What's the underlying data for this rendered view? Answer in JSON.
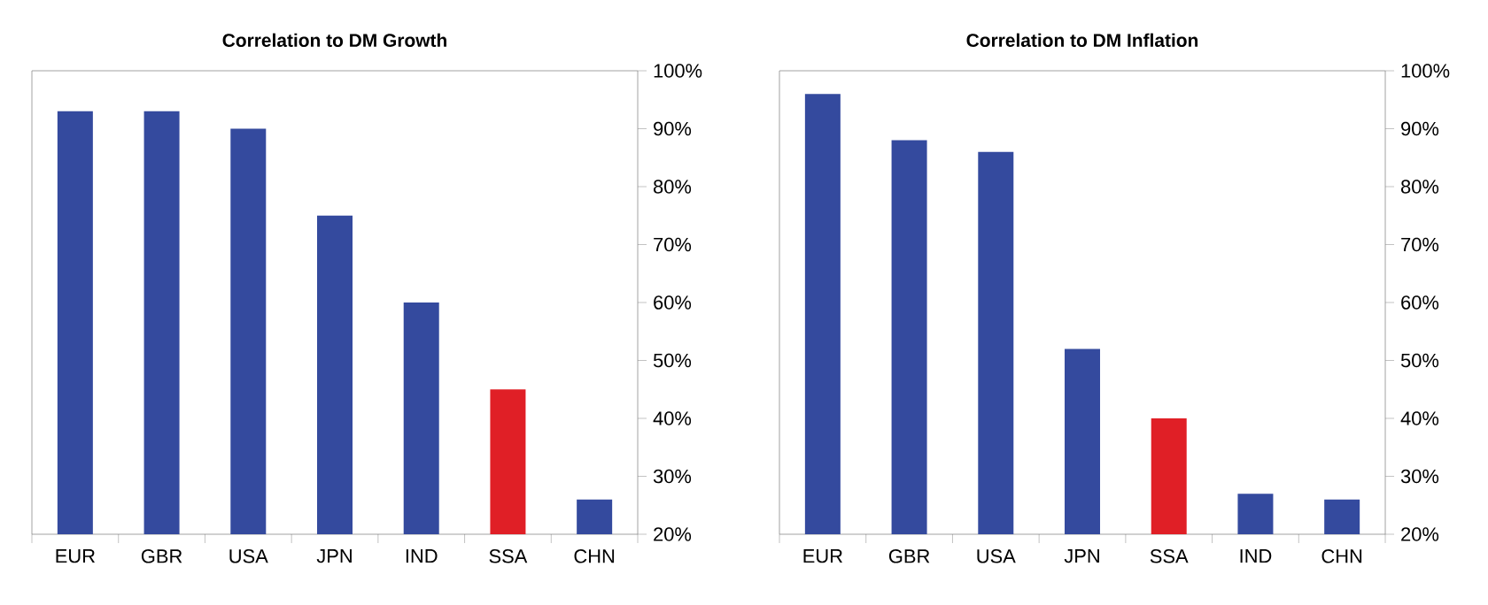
{
  "chart_data": [
    {
      "type": "bar",
      "title": "Correlation to DM Growth",
      "categories": [
        "EUR",
        "GBR",
        "USA",
        "JPN",
        "IND",
        "SSA",
        "CHN"
      ],
      "values": [
        93,
        93,
        90,
        75,
        60,
        45,
        26
      ],
      "colors": [
        "#344a9e",
        "#344a9e",
        "#344a9e",
        "#344a9e",
        "#344a9e",
        "#e01f26",
        "#344a9e"
      ],
      "ylim": [
        20,
        100
      ],
      "yticks": [
        {
          "value": 20,
          "label": "20%"
        },
        {
          "value": 30,
          "label": "30%"
        },
        {
          "value": 40,
          "label": "40%"
        },
        {
          "value": 50,
          "label": "50%"
        },
        {
          "value": 60,
          "label": "60%"
        },
        {
          "value": 70,
          "label": "70%"
        },
        {
          "value": 80,
          "label": "80%"
        },
        {
          "value": 90,
          "label": "90%"
        },
        {
          "value": 100,
          "label": "100%"
        }
      ]
    },
    {
      "type": "bar",
      "title": "Correlation to DM Inflation",
      "categories": [
        "EUR",
        "GBR",
        "USA",
        "JPN",
        "SSA",
        "IND",
        "CHN"
      ],
      "values": [
        96,
        88,
        86,
        52,
        40,
        27,
        26
      ],
      "colors": [
        "#344a9e",
        "#344a9e",
        "#344a9e",
        "#344a9e",
        "#e01f26",
        "#344a9e",
        "#344a9e"
      ],
      "ylim": [
        20,
        100
      ],
      "yticks": [
        {
          "value": 20,
          "label": "20%"
        },
        {
          "value": 30,
          "label": "30%"
        },
        {
          "value": 40,
          "label": "40%"
        },
        {
          "value": 50,
          "label": "50%"
        },
        {
          "value": 60,
          "label": "60%"
        },
        {
          "value": 70,
          "label": "70%"
        },
        {
          "value": 80,
          "label": "80%"
        },
        {
          "value": 90,
          "label": "90%"
        },
        {
          "value": 100,
          "label": "100%"
        }
      ]
    }
  ]
}
